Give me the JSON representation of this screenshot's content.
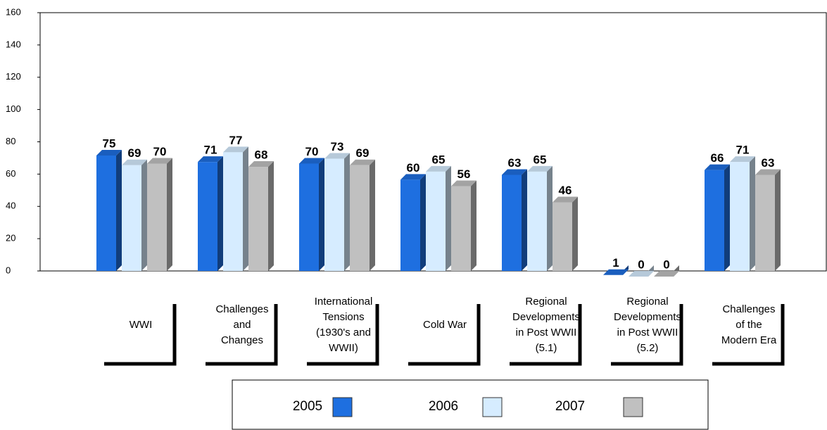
{
  "chart_data": {
    "type": "bar",
    "categories": [
      "WWI",
      "Challenges\nand\nChanges",
      "International\nTensions\n(1930's and\nWWII)",
      "Cold War",
      "Regional\nDevelopments\nin Post WWII\n(5.1)",
      "Regional\nDevelopments\nin Post WWII\n(5.2)",
      "Challenges\nof the\nModern Era"
    ],
    "series": [
      {
        "name": "2005",
        "color": "#1e6fe0",
        "values": [
          75,
          71,
          70,
          60,
          63,
          1,
          66
        ]
      },
      {
        "name": "2006",
        "color": "#d6ecff",
        "values": [
          69,
          77,
          73,
          65,
          65,
          0,
          71
        ]
      },
      {
        "name": "2007",
        "color": "#c0c0c0",
        "values": [
          70,
          68,
          69,
          56,
          46,
          0,
          63
        ]
      }
    ],
    "ylim": [
      0,
      160
    ],
    "yticks": [
      0,
      20,
      40,
      60,
      80,
      100,
      120,
      140,
      160
    ],
    "grid": false
  }
}
